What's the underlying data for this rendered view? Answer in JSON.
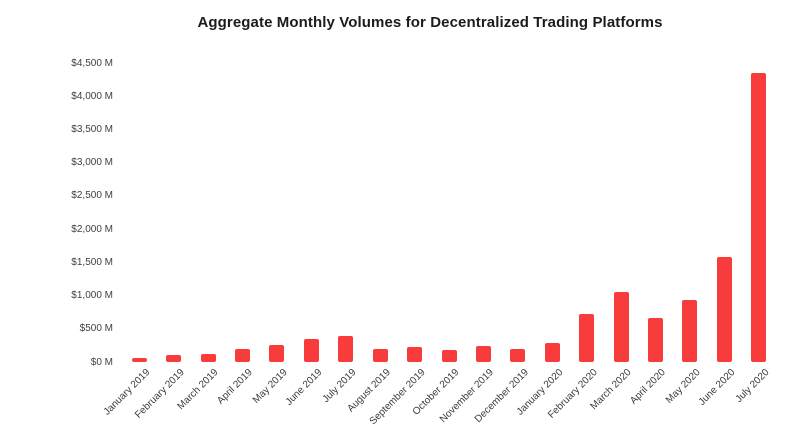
{
  "title": "Aggregate Monthly Volumes for Decentralized Trading Platforms",
  "chart_data": {
    "type": "bar",
    "title": "Aggregate Monthly Volumes for Decentralized Trading Platforms",
    "xlabel": "",
    "ylabel": "",
    "grid": "off",
    "legend": "none",
    "bar_color": "#f83c3c",
    "ylim": [
      0,
      4500
    ],
    "ytick_values": [
      0,
      500,
      1000,
      1500,
      2000,
      2500,
      3000,
      3500,
      4000,
      4500
    ],
    "ytick_labels": [
      "$0 M",
      "$500 M",
      "$1,000 M",
      "$1,500 M",
      "$2,000 M",
      "$2,500 M",
      "$3,000 M",
      "$3,500 M",
      "$4,000 M",
      "$4,500 M"
    ],
    "categories": [
      "January 2019",
      "February 2019",
      "March 2019",
      "April 2019",
      "May 2019",
      "June 2019",
      "July 2019",
      "August 2019",
      "September 2019",
      "October 2019",
      "November 2019",
      "December 2019",
      "January 2020",
      "February 2020",
      "March 2020",
      "April 2020",
      "May 2020",
      "June 2020",
      "July 2020"
    ],
    "values": [
      60,
      105,
      115,
      200,
      260,
      350,
      385,
      195,
      230,
      175,
      245,
      200,
      285,
      715,
      1050,
      655,
      930,
      1580,
      4350
    ],
    "values_unit": "M USD"
  }
}
